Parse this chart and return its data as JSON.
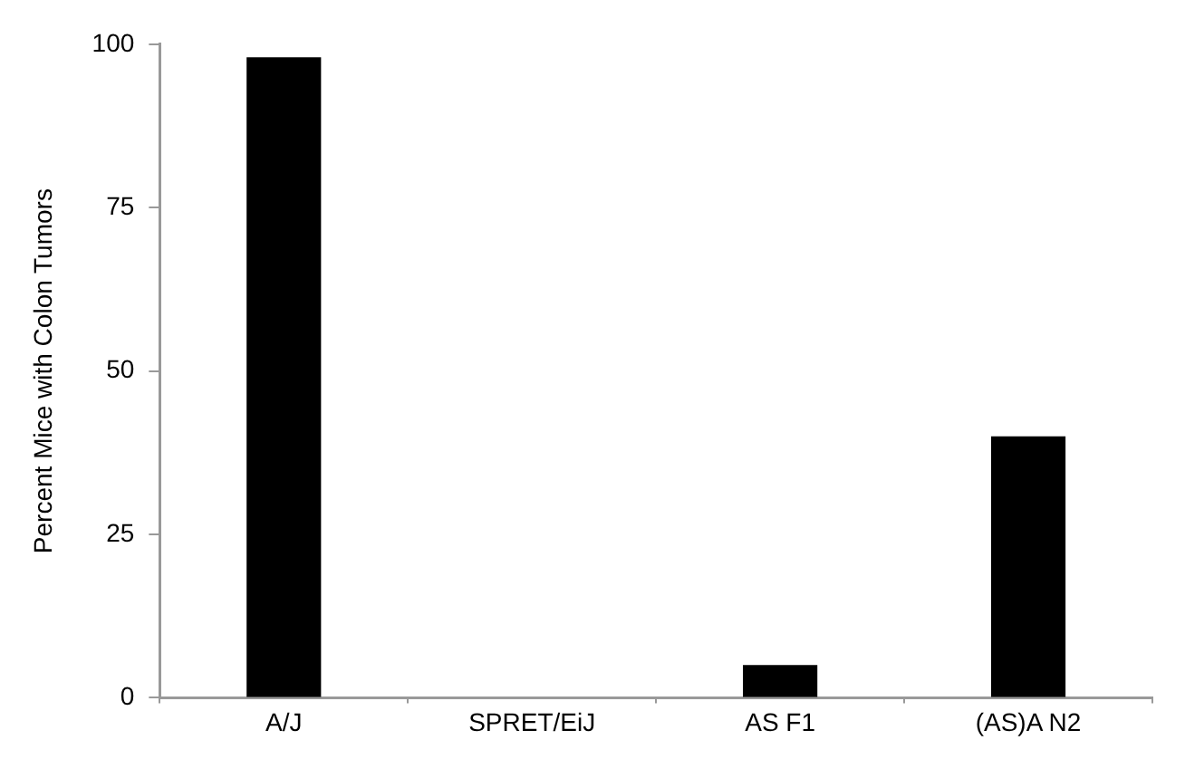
{
  "chart_data": {
    "type": "bar",
    "ylabel": "Percent Mice with Colon Tumors",
    "categories": [
      "A/J",
      "SPRET/EiJ",
      "AS F1",
      "(AS)A N2"
    ],
    "values": [
      98,
      0,
      5,
      40
    ],
    "color": "#000000",
    "ylim": [
      0,
      100
    ],
    "yticks": [
      0,
      25,
      50,
      75,
      100
    ],
    "grid": false,
    "legend": false
  }
}
